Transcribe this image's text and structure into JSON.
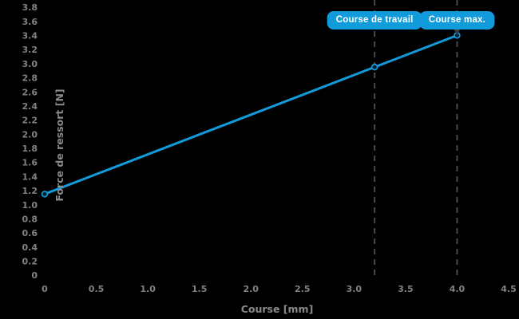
{
  "figure": {
    "background": "#000000",
    "accent_blue": "#129bdb",
    "tick_text_gray": "#828282",
    "axis_label_gray": "#8a8a8a",
    "dashed_line_gray": "#4a4a4a",
    "badge_text_color": "#ffffff"
  },
  "chart_data": {
    "type": "line",
    "title": "",
    "xlabel": "Course [mm]",
    "ylabel": "Force de ressort [N]",
    "xlim": [
      0,
      4.5
    ],
    "ylim": [
      0,
      3.8
    ],
    "xticks": [
      0,
      0.5,
      1.0,
      1.5,
      2.0,
      2.5,
      3.0,
      3.5,
      4.0,
      4.5
    ],
    "yticks": [
      0,
      0.2,
      0.4,
      0.6,
      0.8,
      1.0,
      1.2,
      1.4,
      1.6,
      1.8,
      2.0,
      2.2,
      2.4,
      2.6,
      2.8,
      3.0,
      3.2,
      3.4,
      3.6,
      3.8
    ],
    "grid": false,
    "legend": false,
    "series": [
      {
        "x": [
          0,
          3.2,
          4.0
        ],
        "y": [
          1.15,
          2.95,
          3.4
        ],
        "color": "#129bdb",
        "marker": "circle"
      }
    ],
    "annotations": [
      {
        "label": "Course de travail",
        "x": 3.2,
        "y_point": 2.95,
        "arrow": false
      },
      {
        "label": "Course max.",
        "x": 4.0,
        "y_point": 3.4,
        "arrow": true
      }
    ]
  }
}
